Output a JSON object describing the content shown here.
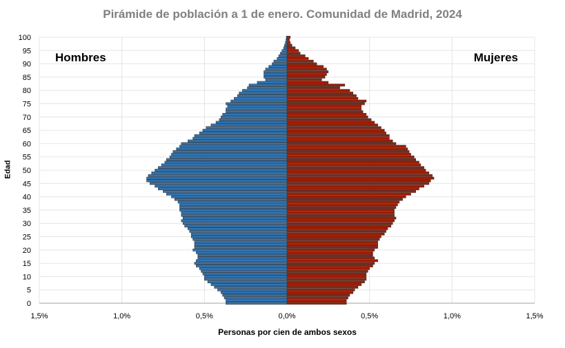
{
  "chart_data": {
    "type": "bar",
    "orientation": "horizontal-pyramid",
    "title": "Pirámide de población a 1 de enero. Comunidad de Madrid, 2024",
    "xlabel": "Personas por cien de ambos sexos",
    "ylabel": "Edad",
    "xlim": [
      -1.5,
      1.5
    ],
    "ylim": [
      0,
      100
    ],
    "x_ticks": [
      "1,5%",
      "1,0%",
      "0,5%",
      "0,0%",
      "0,5%",
      "1,0%",
      "1,5%"
    ],
    "y_ticks": [
      "0",
      "5",
      "10",
      "15",
      "20",
      "25",
      "30",
      "35",
      "40",
      "45",
      "50",
      "55",
      "60",
      "65",
      "70",
      "75",
      "80",
      "85",
      "90",
      "95",
      "100"
    ],
    "grid": true,
    "ages": "0-100",
    "series": [
      {
        "name": "Hombres",
        "color": "#2e75b6",
        "side": "left",
        "values": [
          0.37,
          0.37,
          0.38,
          0.39,
          0.4,
          0.42,
          0.44,
          0.46,
          0.48,
          0.5,
          0.5,
          0.51,
          0.52,
          0.53,
          0.55,
          0.56,
          0.55,
          0.54,
          0.54,
          0.55,
          0.57,
          0.56,
          0.56,
          0.56,
          0.57,
          0.58,
          0.58,
          0.59,
          0.6,
          0.62,
          0.63,
          0.64,
          0.63,
          0.64,
          0.64,
          0.65,
          0.65,
          0.65,
          0.66,
          0.68,
          0.7,
          0.73,
          0.75,
          0.78,
          0.8,
          0.83,
          0.85,
          0.85,
          0.84,
          0.82,
          0.8,
          0.78,
          0.76,
          0.74,
          0.73,
          0.71,
          0.7,
          0.69,
          0.67,
          0.65,
          0.64,
          0.6,
          0.57,
          0.56,
          0.53,
          0.51,
          0.49,
          0.46,
          0.43,
          0.41,
          0.4,
          0.39,
          0.37,
          0.37,
          0.36,
          0.37,
          0.34,
          0.32,
          0.3,
          0.29,
          0.27,
          0.24,
          0.23,
          0.18,
          0.13,
          0.14,
          0.14,
          0.14,
          0.13,
          0.11,
          0.09,
          0.08,
          0.06,
          0.05,
          0.04,
          0.03,
          0.02,
          0.015,
          0.01,
          0.006,
          0.004
        ]
      },
      {
        "name": "Mujeres",
        "color": "#a31a00",
        "side": "right",
        "values": [
          0.36,
          0.36,
          0.37,
          0.38,
          0.4,
          0.41,
          0.43,
          0.45,
          0.47,
          0.48,
          0.48,
          0.48,
          0.49,
          0.5,
          0.52,
          0.53,
          0.55,
          0.53,
          0.52,
          0.52,
          0.53,
          0.55,
          0.55,
          0.55,
          0.56,
          0.57,
          0.59,
          0.6,
          0.61,
          0.63,
          0.64,
          0.65,
          0.66,
          0.65,
          0.65,
          0.65,
          0.66,
          0.67,
          0.68,
          0.7,
          0.72,
          0.75,
          0.78,
          0.8,
          0.83,
          0.86,
          0.87,
          0.89,
          0.88,
          0.86,
          0.84,
          0.83,
          0.81,
          0.8,
          0.78,
          0.77,
          0.75,
          0.74,
          0.73,
          0.72,
          0.66,
          0.64,
          0.62,
          0.62,
          0.6,
          0.59,
          0.57,
          0.55,
          0.53,
          0.51,
          0.49,
          0.48,
          0.46,
          0.45,
          0.45,
          0.47,
          0.48,
          0.43,
          0.42,
          0.4,
          0.38,
          0.32,
          0.35,
          0.25,
          0.21,
          0.23,
          0.24,
          0.25,
          0.24,
          0.22,
          0.18,
          0.16,
          0.13,
          0.11,
          0.08,
          0.07,
          0.05,
          0.03,
          0.02,
          0.015,
          0.02
        ]
      }
    ],
    "legend": "inside labels: top-left Hombres, top-right Mujeres"
  }
}
